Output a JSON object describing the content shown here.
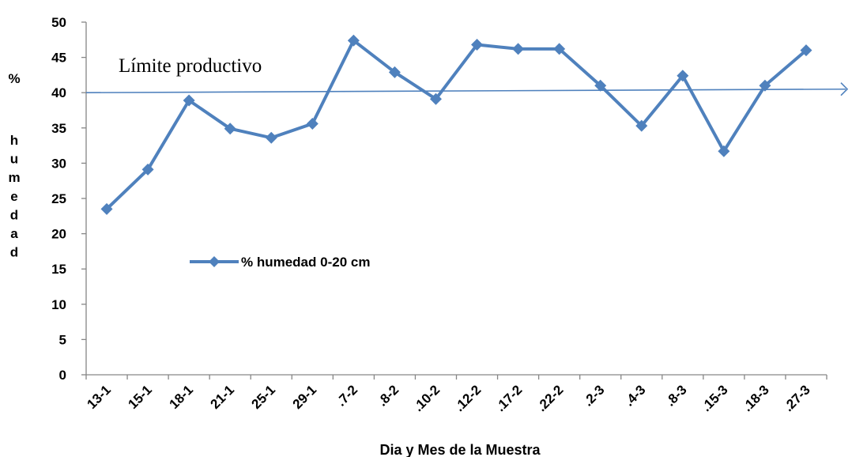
{
  "chart_data": {
    "type": "line",
    "xlabel": "Dia y Mes de la Muestra",
    "ylabel": "% humedad",
    "ylim": [
      0,
      50
    ],
    "yticks": [
      0,
      5,
      10,
      15,
      20,
      25,
      30,
      35,
      40,
      45,
      50
    ],
    "categories": [
      "13-1",
      "15-1",
      "18-1",
      "21-1",
      "25-1",
      "29-1",
      ".7-2",
      ".8-2",
      ".10-2",
      ".12-2",
      ".17-2",
      ".22-2",
      ".2-3",
      ".4-3",
      ".8-3",
      ".15-3",
      ".18-3",
      ".27-3"
    ],
    "series": [
      {
        "name": "% humedad 0-20 cm",
        "color": "#4F81BD",
        "marker": "diamond",
        "values": [
          23.5,
          29.1,
          38.9,
          34.9,
          33.6,
          35.6,
          47.4,
          42.9,
          39.1,
          46.8,
          46.2,
          46.2,
          41.0,
          35.3,
          42.4,
          31.7,
          41.0,
          46.0
        ]
      }
    ],
    "legend": {
      "label": "% humedad 0-20 cm",
      "placement": "center-left"
    },
    "annotations": [
      {
        "text": "Límite productivo",
        "type": "reference-line",
        "y_start": 40.0,
        "y_end": 40.5,
        "color": "#4F81BD"
      }
    ],
    "grid": false
  }
}
